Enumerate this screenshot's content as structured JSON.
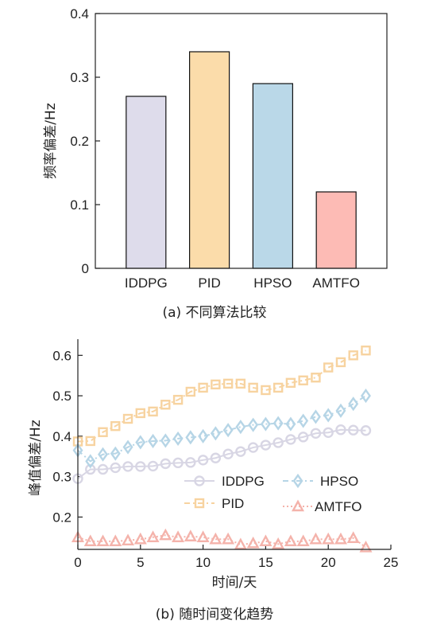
{
  "chart_data": [
    {
      "type": "bar",
      "categories": [
        "IDDPG",
        "PID",
        "HPSO",
        "AMTFO"
      ],
      "values": [
        0.27,
        0.34,
        0.29,
        0.12
      ],
      "colors": [
        "#dedceb",
        "#fbdcaa",
        "#bad8e8",
        "#fdbbb5"
      ],
      "ylabel": "频率偏差/Hz",
      "ylim": [
        0,
        0.4
      ],
      "yticks": [
        "0",
        "0.1",
        "0.2",
        "0.3",
        "0.4"
      ],
      "caption": "(a) 不同算法比较"
    },
    {
      "type": "line",
      "x": [
        0,
        1,
        2,
        3,
        4,
        5,
        6,
        7,
        8,
        9,
        10,
        11,
        12,
        13,
        14,
        15,
        16,
        17,
        18,
        19,
        20,
        21,
        22,
        23
      ],
      "series": [
        {
          "name": "IDDPG",
          "color": "#d8d6e4",
          "marker": "circle",
          "dash": "solid",
          "values": [
            0.295,
            0.318,
            0.318,
            0.322,
            0.325,
            0.325,
            0.326,
            0.332,
            0.334,
            0.335,
            0.341,
            0.346,
            0.356,
            0.362,
            0.372,
            0.378,
            0.384,
            0.392,
            0.398,
            0.407,
            0.409,
            0.416,
            0.415,
            0.414
          ]
        },
        {
          "name": "PID",
          "color": "#f7d3a0",
          "marker": "square",
          "dash": "dashdot",
          "values": [
            0.387,
            0.388,
            0.41,
            0.425,
            0.443,
            0.457,
            0.461,
            0.478,
            0.49,
            0.51,
            0.52,
            0.528,
            0.53,
            0.53,
            0.52,
            0.514,
            0.52,
            0.532,
            0.538,
            0.545,
            0.57,
            0.583,
            0.6,
            0.612
          ]
        },
        {
          "name": "HPSO",
          "color": "#b6d5e6",
          "marker": "diamond",
          "dash": "dashdot",
          "values": [
            0.365,
            0.338,
            0.355,
            0.357,
            0.373,
            0.385,
            0.388,
            0.389,
            0.394,
            0.397,
            0.4,
            0.407,
            0.415,
            0.423,
            0.428,
            0.43,
            0.432,
            0.43,
            0.438,
            0.448,
            0.452,
            0.463,
            0.48,
            0.5
          ]
        },
        {
          "name": "AMTFO",
          "color": "#f4b3ab",
          "marker": "triangle",
          "dash": "dotted",
          "values": [
            0.15,
            0.14,
            0.14,
            0.14,
            0.142,
            0.145,
            0.15,
            0.155,
            0.15,
            0.152,
            0.15,
            0.145,
            0.145,
            0.132,
            0.135,
            0.14,
            0.133,
            0.14,
            0.14,
            0.145,
            0.145,
            0.145,
            0.148,
            0.125
          ]
        }
      ],
      "xlabel": "时间/天",
      "ylabel": "峰值偏差/Hz",
      "xlim": [
        0,
        25
      ],
      "ylim": [
        0.12,
        0.64
      ],
      "xticks": [
        "0",
        "5",
        "10",
        "15",
        "20",
        "25"
      ],
      "yticks": [
        "0.2",
        "0.3",
        "0.4",
        "0.5",
        "0.6"
      ],
      "legend": "center-right, two columns",
      "caption": "(b) 随时间变化趋势"
    }
  ]
}
